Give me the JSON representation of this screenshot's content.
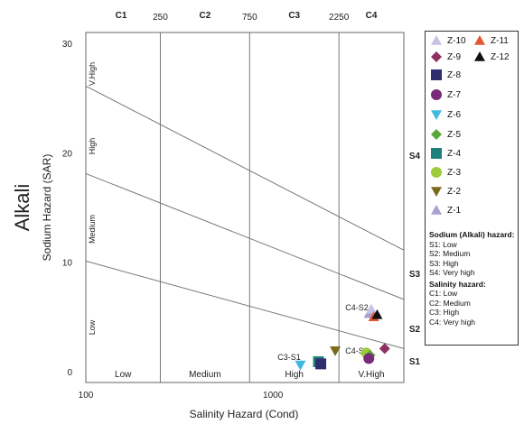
{
  "chart_data": {
    "type": "scatter",
    "title": "Alkali",
    "xlabel": "Salinity Hazard (Cond)",
    "ylabel": "Sodium Hazard (SAR)",
    "x_scale": "log",
    "xlim": [
      100,
      5000
    ],
    "ylim": [
      -1,
      31
    ],
    "x_ticks": [
      {
        "value": 100,
        "label": "100"
      },
      {
        "value": 1000,
        "label": "1000"
      }
    ],
    "y_ticks": [
      {
        "value": 0,
        "label": "0"
      },
      {
        "value": 10,
        "label": "10"
      },
      {
        "value": 20,
        "label": "20"
      },
      {
        "value": 30,
        "label": "30"
      }
    ],
    "salinity_boundaries": [
      {
        "value": 250,
        "label": "250"
      },
      {
        "value": 750,
        "label": "750"
      },
      {
        "value": 2250,
        "label": "2250"
      }
    ],
    "salinity_classes_top": [
      "C1",
      "C2",
      "C3",
      "C4"
    ],
    "salinity_classes_bottom": [
      "Low",
      "Medium",
      "High",
      "V.High"
    ],
    "sodium_classes_vertical": [
      "Low",
      "Medium",
      "High",
      "V.High"
    ],
    "sodium_classes_right": [
      "S1",
      "S2",
      "S3",
      "S4"
    ],
    "sodium_boundaries": [
      {
        "from": [
          100,
          10.1
        ],
        "to": [
          5000,
          2.1
        ]
      },
      {
        "from": [
          100,
          18.1
        ],
        "to": [
          5000,
          6.6
        ]
      },
      {
        "from": [
          100,
          26.1
        ],
        "to": [
          5000,
          11.1
        ]
      }
    ],
    "annotations": [
      "C4-S2",
      "C4-S1",
      "C3-S1"
    ],
    "series": [
      {
        "name": "Z-1",
        "marker": "triangle-up",
        "color": "#a99fd0",
        "x": 3260,
        "y": 5.3
      },
      {
        "name": "Z-2",
        "marker": "triangle-down",
        "color": "#7a6a1e",
        "x": 2150,
        "y": 1.9
      },
      {
        "name": "Z-3",
        "marker": "circle",
        "color": "#9ccc3a",
        "x": 3150,
        "y": 1.7
      },
      {
        "name": "Z-4",
        "marker": "square",
        "color": "#1f7f7a",
        "x": 1750,
        "y": 0.9
      },
      {
        "name": "Z-5",
        "marker": "diamond",
        "color": "#5aa83a",
        "x": 3300,
        "y": 1.5
      },
      {
        "name": "Z-6",
        "marker": "triangle-down",
        "color": "#40b8e0",
        "x": 1400,
        "y": 0.6
      },
      {
        "name": "Z-7",
        "marker": "circle",
        "color": "#7a2a7a",
        "x": 3250,
        "y": 1.2
      },
      {
        "name": "Z-8",
        "marker": "square",
        "color": "#2e2e6e",
        "x": 1800,
        "y": 0.7
      },
      {
        "name": "Z-9",
        "marker": "diamond",
        "color": "#8e3060",
        "x": 3950,
        "y": 2.1
      },
      {
        "name": "Z-10",
        "marker": "triangle-up",
        "color": "#c9c0e6",
        "x": 3350,
        "y": 5.7
      },
      {
        "name": "Z-11",
        "marker": "triangle-up",
        "color": "#e05a30",
        "x": 3450,
        "y": 5.0
      },
      {
        "name": "Z-12",
        "marker": "triangle-up",
        "color": "#111111",
        "x": 3600,
        "y": 5.2
      }
    ],
    "legend_position": "right",
    "grid": false
  },
  "legend": {
    "sodium_heading": "Sodium (Alkali) hazard:",
    "sodium_items": [
      "S1: Low",
      "S2: Medium",
      "S3: High",
      "S4: Very high"
    ],
    "salinity_heading": "Salinity hazard:",
    "salinity_items": [
      "C1: Low",
      "C2: Medium",
      "C3: High",
      "C4: Very high"
    ]
  }
}
